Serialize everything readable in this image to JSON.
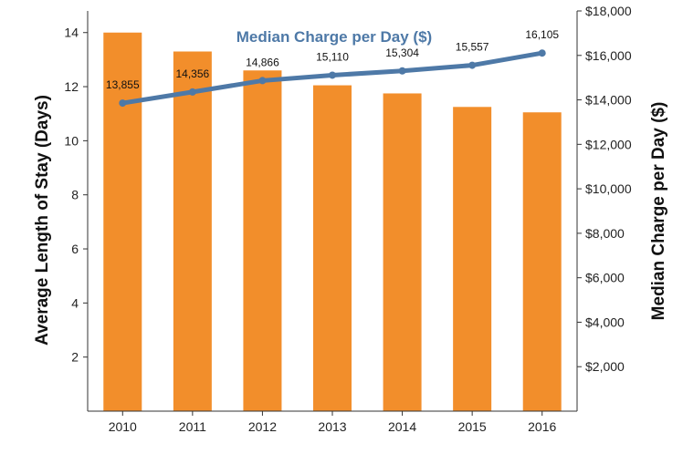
{
  "chart_data": {
    "type": "bar+line",
    "categories": [
      "2010",
      "2011",
      "2012",
      "2013",
      "2014",
      "2015",
      "2016"
    ],
    "series": [
      {
        "type": "bar",
        "axis": "left",
        "values": [
          14.0,
          13.3,
          12.6,
          12.05,
          11.75,
          11.25,
          11.05
        ],
        "color": "#F28E2B"
      },
      {
        "type": "line",
        "axis": "right",
        "name": "Median Charge per Day ($)",
        "values": [
          13855,
          14356,
          14866,
          15110,
          15304,
          15557,
          16105
        ],
        "labels": [
          "13,855",
          "14,356",
          "14,866",
          "15,110",
          "15,304",
          "15,557",
          "16,105"
        ],
        "color": "#4E79A7"
      }
    ],
    "ylabel_left": "Average Length of Stay (Days)",
    "ylabel_right": "Median Charge per Day ($)",
    "ylim_left": [
      0,
      14.8
    ],
    "ylim_right": [
      0,
      18000
    ],
    "yticks_left": [
      2,
      4,
      6,
      8,
      10,
      12,
      14
    ],
    "yticks_right": [
      2000,
      4000,
      6000,
      8000,
      10000,
      12000,
      14000,
      16000,
      18000
    ],
    "yticklabels_right": [
      "$2,000",
      "$4,000",
      "$6,000",
      "$8,000",
      "$10,000",
      "$12,000",
      "$14,000",
      "$16,000",
      "$18,000"
    ],
    "grid": false,
    "legend": "none"
  }
}
